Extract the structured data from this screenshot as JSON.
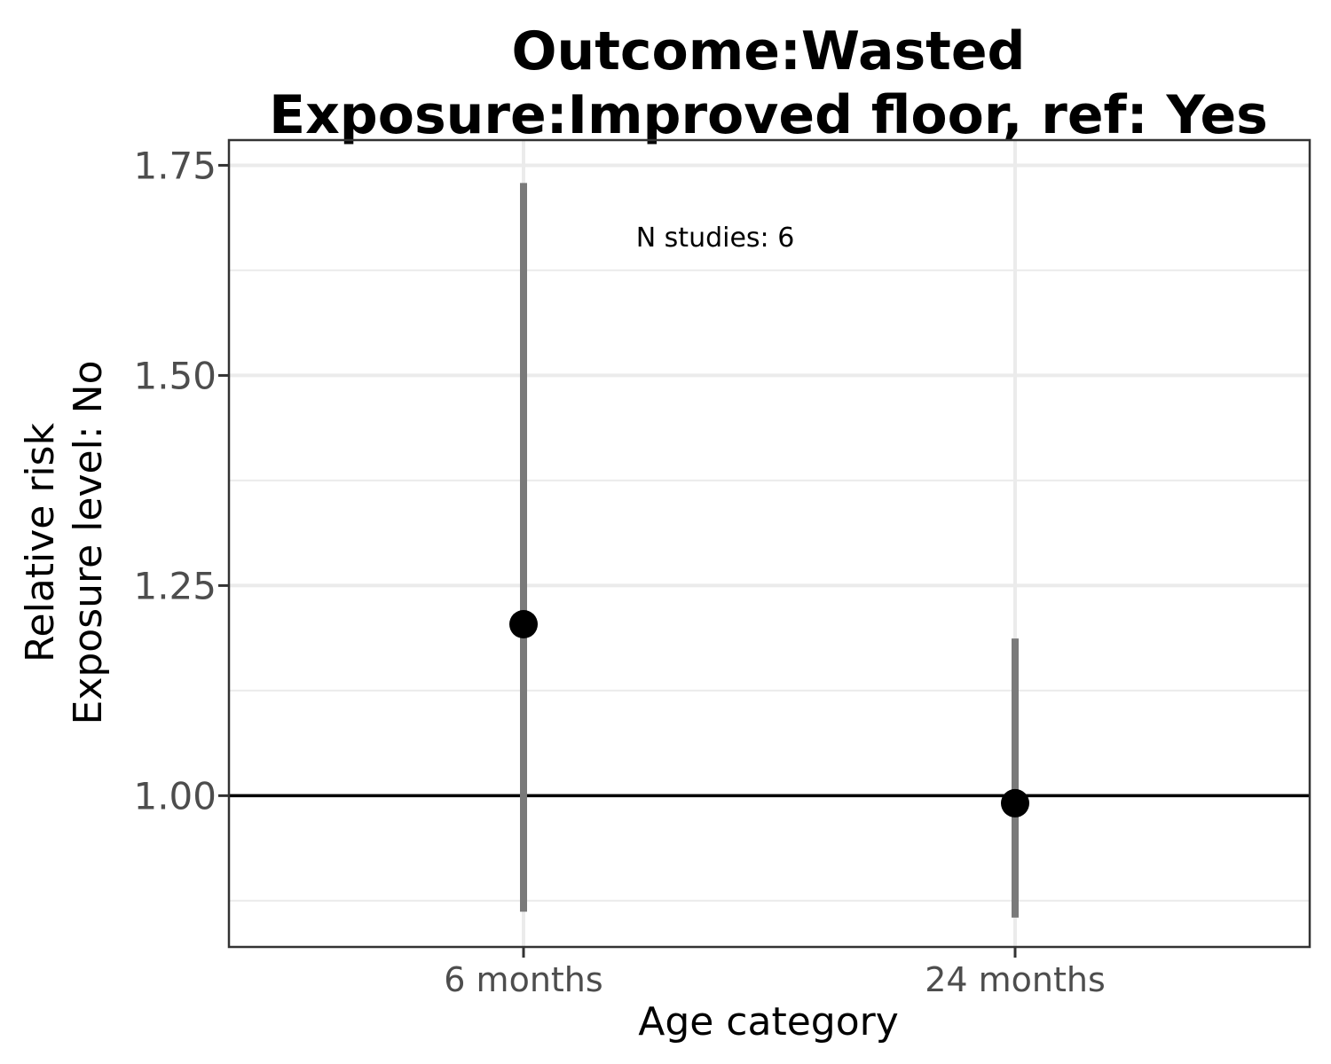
{
  "chart_data": {
    "type": "scatter",
    "title_lines": [
      "Outcome:Wasted",
      "Exposure:Improved floor, ref: Yes"
    ],
    "xlabel": "Age category",
    "ylabel_lines": [
      "Relative risk",
      "Exposure level: No"
    ],
    "categories": [
      "6 months",
      "24 months"
    ],
    "points": [
      {
        "category": "6 months",
        "estimate": 1.204,
        "ci_lower": 0.862,
        "ci_upper": 1.729
      },
      {
        "category": "24 months",
        "estimate": 0.991,
        "ci_lower": 0.855,
        "ci_upper": 1.187
      }
    ],
    "ylim": [
      0.82,
      1.78
    ],
    "y_ticks": [
      1.0,
      1.25,
      1.5,
      1.75
    ],
    "y_tick_labels": [
      "1.00",
      "1.25",
      "1.50",
      "1.75"
    ],
    "y_minor_gridlines": [
      0.875,
      1.125,
      1.375,
      1.625
    ],
    "reference_line": 1.0,
    "annotation": "N studies: 6",
    "grid": true,
    "legend": "none",
    "colors": {
      "point": "#000000",
      "errorbar": "#7a7a7a",
      "reference_line": "#000000",
      "grid": "#ebebeb",
      "panel_border": "#333333"
    }
  }
}
